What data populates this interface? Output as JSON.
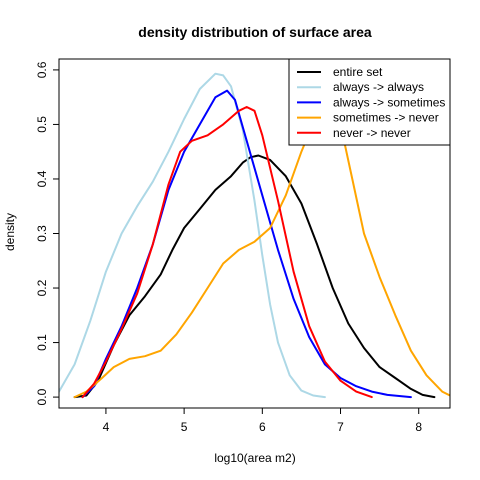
{
  "chart_data": {
    "type": "line",
    "title": "density distribution of surface area",
    "xlabel": "log10(area m2)",
    "ylabel": "density",
    "xlim": [
      3.4,
      8.4
    ],
    "ylim": [
      -0.02,
      0.62
    ],
    "xticks": [
      4,
      5,
      6,
      7,
      8
    ],
    "yticks": [
      0.0,
      0.1,
      0.2,
      0.3,
      0.4,
      0.5,
      0.6
    ],
    "legend_position": "top-right",
    "series": [
      {
        "name": "entire set",
        "color": "#000000",
        "points": [
          [
            3.6,
            0.0
          ],
          [
            3.75,
            0.003
          ],
          [
            3.9,
            0.03
          ],
          [
            4.1,
            0.095
          ],
          [
            4.3,
            0.15
          ],
          [
            4.5,
            0.185
          ],
          [
            4.7,
            0.225
          ],
          [
            4.85,
            0.27
          ],
          [
            5.0,
            0.31
          ],
          [
            5.2,
            0.345
          ],
          [
            5.4,
            0.38
          ],
          [
            5.6,
            0.405
          ],
          [
            5.75,
            0.43
          ],
          [
            5.85,
            0.44
          ],
          [
            5.95,
            0.443
          ],
          [
            6.1,
            0.435
          ],
          [
            6.3,
            0.405
          ],
          [
            6.5,
            0.355
          ],
          [
            6.7,
            0.28
          ],
          [
            6.9,
            0.2
          ],
          [
            7.1,
            0.135
          ],
          [
            7.3,
            0.09
          ],
          [
            7.5,
            0.055
          ],
          [
            7.7,
            0.035
          ],
          [
            7.9,
            0.015
          ],
          [
            8.05,
            0.004
          ],
          [
            8.2,
            0.0
          ]
        ]
      },
      {
        "name": "always -> always",
        "color": "#add8e6",
        "points": [
          [
            3.4,
            0.01
          ],
          [
            3.6,
            0.06
          ],
          [
            3.8,
            0.14
          ],
          [
            4.0,
            0.23
          ],
          [
            4.2,
            0.3
          ],
          [
            4.4,
            0.35
          ],
          [
            4.6,
            0.395
          ],
          [
            4.8,
            0.45
          ],
          [
            5.0,
            0.51
          ],
          [
            5.2,
            0.565
          ],
          [
            5.4,
            0.593
          ],
          [
            5.5,
            0.59
          ],
          [
            5.6,
            0.57
          ],
          [
            5.75,
            0.49
          ],
          [
            5.9,
            0.36
          ],
          [
            6.0,
            0.26
          ],
          [
            6.1,
            0.17
          ],
          [
            6.2,
            0.1
          ],
          [
            6.35,
            0.04
          ],
          [
            6.5,
            0.012
          ],
          [
            6.65,
            0.003
          ],
          [
            6.8,
            0.0
          ]
        ]
      },
      {
        "name": "always -> sometimes",
        "color": "#0000ff",
        "points": [
          [
            3.7,
            0.0
          ],
          [
            3.85,
            0.02
          ],
          [
            4.0,
            0.07
          ],
          [
            4.2,
            0.13
          ],
          [
            4.4,
            0.2
          ],
          [
            4.6,
            0.28
          ],
          [
            4.8,
            0.38
          ],
          [
            5.0,
            0.45
          ],
          [
            5.2,
            0.5
          ],
          [
            5.4,
            0.55
          ],
          [
            5.55,
            0.562
          ],
          [
            5.65,
            0.545
          ],
          [
            5.8,
            0.47
          ],
          [
            6.0,
            0.37
          ],
          [
            6.2,
            0.27
          ],
          [
            6.4,
            0.18
          ],
          [
            6.6,
            0.11
          ],
          [
            6.8,
            0.06
          ],
          [
            7.0,
            0.035
          ],
          [
            7.2,
            0.02
          ],
          [
            7.4,
            0.01
          ],
          [
            7.6,
            0.004
          ],
          [
            7.9,
            0.0
          ]
        ]
      },
      {
        "name": "sometimes -> never",
        "color": "#ffa500",
        "points": [
          [
            3.6,
            0.0
          ],
          [
            3.75,
            0.01
          ],
          [
            3.95,
            0.035
          ],
          [
            4.1,
            0.055
          ],
          [
            4.3,
            0.07
          ],
          [
            4.5,
            0.075
          ],
          [
            4.7,
            0.085
          ],
          [
            4.9,
            0.115
          ],
          [
            5.1,
            0.155
          ],
          [
            5.3,
            0.2
          ],
          [
            5.5,
            0.245
          ],
          [
            5.7,
            0.27
          ],
          [
            5.9,
            0.285
          ],
          [
            6.1,
            0.31
          ],
          [
            6.3,
            0.37
          ],
          [
            6.5,
            0.45
          ],
          [
            6.7,
            0.52
          ],
          [
            6.85,
            0.54
          ],
          [
            7.0,
            0.5
          ],
          [
            7.15,
            0.4
          ],
          [
            7.3,
            0.3
          ],
          [
            7.5,
            0.22
          ],
          [
            7.7,
            0.15
          ],
          [
            7.9,
            0.085
          ],
          [
            8.1,
            0.04
          ],
          [
            8.3,
            0.01
          ],
          [
            8.4,
            0.003
          ]
        ]
      },
      {
        "name": "never -> never",
        "color": "#ff0000",
        "points": [
          [
            3.7,
            0.0
          ],
          [
            3.85,
            0.025
          ],
          [
            4.0,
            0.065
          ],
          [
            4.2,
            0.125
          ],
          [
            4.4,
            0.19
          ],
          [
            4.6,
            0.28
          ],
          [
            4.8,
            0.39
          ],
          [
            4.95,
            0.45
          ],
          [
            5.1,
            0.47
          ],
          [
            5.3,
            0.48
          ],
          [
            5.5,
            0.5
          ],
          [
            5.7,
            0.525
          ],
          [
            5.8,
            0.532
          ],
          [
            5.9,
            0.525
          ],
          [
            6.0,
            0.48
          ],
          [
            6.2,
            0.36
          ],
          [
            6.4,
            0.23
          ],
          [
            6.6,
            0.13
          ],
          [
            6.8,
            0.065
          ],
          [
            7.0,
            0.03
          ],
          [
            7.2,
            0.01
          ],
          [
            7.4,
            0.0
          ]
        ]
      }
    ]
  }
}
